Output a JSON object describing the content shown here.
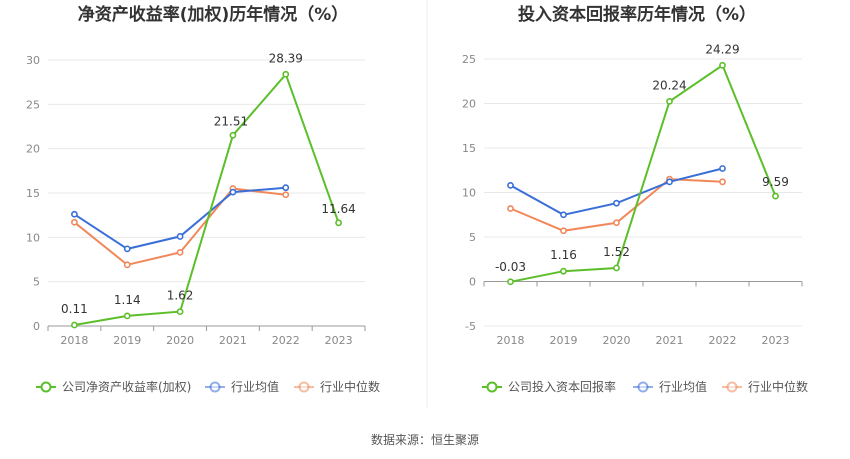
{
  "colors": {
    "company": "#5cbf2a",
    "avg": "#3a6fd8",
    "median": "#f0885a",
    "grid": "#e8e8e8",
    "axis": "#999999"
  },
  "source_label": "数据来源：恒生聚源",
  "chart_data": [
    {
      "type": "line",
      "title": "净资产收益率(加权)历年情况（%）",
      "categories": [
        "2018",
        "2019",
        "2020",
        "2021",
        "2022",
        "2023"
      ],
      "ylim": [
        0,
        30
      ],
      "yticks": [
        0,
        5,
        10,
        15,
        20,
        25,
        30
      ],
      "grid": true,
      "legend_position": "bottom",
      "series": [
        {
          "name": "公司净资产收益率(加权)",
          "key": "company",
          "values": [
            0.11,
            1.14,
            1.62,
            21.51,
            28.39,
            11.64
          ],
          "labels": [
            "0.11",
            "1.14",
            "1.62",
            "21.51",
            "28.39",
            "11.64"
          ]
        },
        {
          "name": "行业均值",
          "key": "avg",
          "values": [
            12.6,
            8.7,
            10.1,
            15.1,
            15.6,
            null
          ]
        },
        {
          "name": "行业中位数",
          "key": "median",
          "values": [
            11.7,
            6.9,
            8.3,
            15.5,
            14.8,
            null
          ]
        }
      ]
    },
    {
      "type": "line",
      "title": "投入资本回报率历年情况（%）",
      "categories": [
        "2018",
        "2019",
        "2020",
        "2021",
        "2022",
        "2023"
      ],
      "ylim": [
        -5,
        25
      ],
      "yticks": [
        -5,
        0,
        5,
        10,
        15,
        20,
        25
      ],
      "grid": true,
      "legend_position": "bottom",
      "series": [
        {
          "name": "公司投入资本回报率",
          "key": "company",
          "values": [
            -0.03,
            1.16,
            1.52,
            20.24,
            24.29,
            9.59
          ],
          "labels": [
            "-0.03",
            "1.16",
            "1.52",
            "20.24",
            "24.29",
            "9.59"
          ]
        },
        {
          "name": "行业均值",
          "key": "avg",
          "values": [
            10.8,
            7.5,
            8.8,
            11.2,
            12.7,
            null
          ]
        },
        {
          "name": "行业中位数",
          "key": "median",
          "values": [
            8.2,
            5.7,
            6.6,
            11.5,
            11.2,
            null
          ]
        }
      ]
    }
  ]
}
